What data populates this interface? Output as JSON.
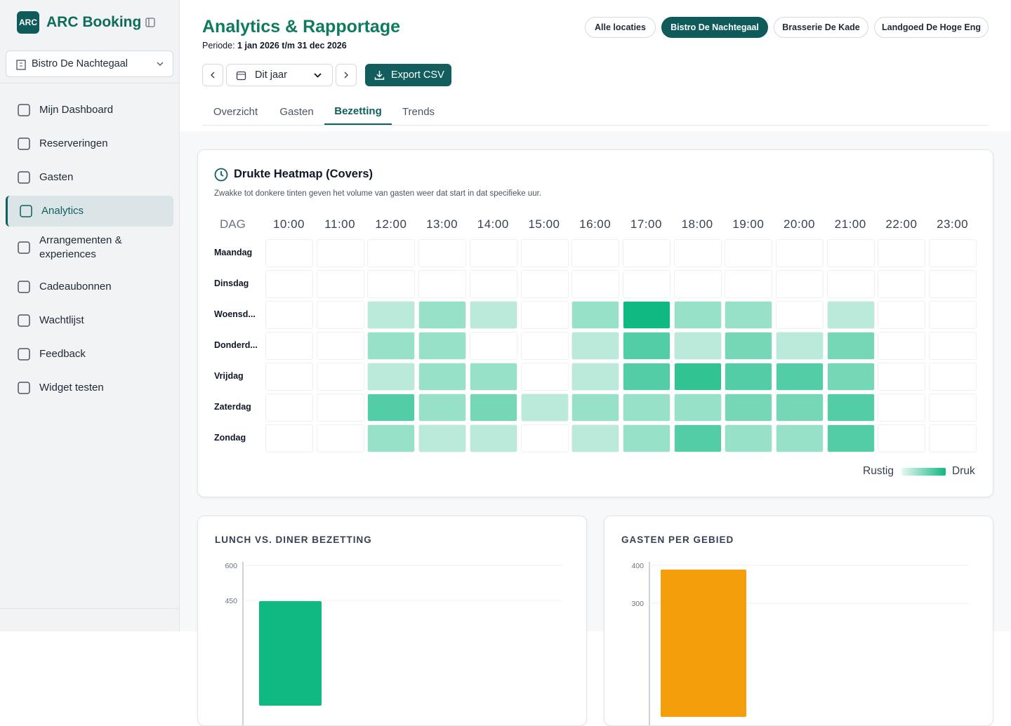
{
  "sidebar": {
    "brand": "ARC Booking",
    "logo": "ARC",
    "location": "Bistro De Nachtegaal",
    "menu": [
      "Mijn Dashboard",
      "Reserveringen",
      "Gasten",
      "Analytics",
      "Arrangementen & experiences",
      "Cadeaubonnen",
      "Wachtlijst",
      "Feedback",
      "Widget testen"
    ]
  },
  "header": {
    "title": "Analytics & Rapportage",
    "period_label": "Periode:",
    "period": "1 jan 2026 t/m 31 dec 2026",
    "locations": [
      "Alle locaties",
      "Bistro De Nachtegaal",
      "Brasserie De Kade",
      "Landgoed De Hoge Eng"
    ],
    "range": "Dit jaar",
    "export": "Export CSV",
    "tabs": [
      "Overzicht",
      "Gasten",
      "Bezetting",
      "Trends"
    ]
  },
  "heatmap": {
    "title": "Drukte Heatmap (Covers)",
    "subtitle": "Zwakke tot donkere tinten geven het volume van gasten weer dat start in dat specifieke uur.",
    "corner": "DAG",
    "hours": [
      "10:00",
      "11:00",
      "12:00",
      "13:00",
      "14:00",
      "15:00",
      "16:00",
      "17:00",
      "18:00",
      "19:00",
      "20:00",
      "21:00",
      "22:00",
      "23:00"
    ],
    "days": [
      "Maandag",
      "Dinsdag",
      "Woensd...",
      "Donderd...",
      "Vrijdag",
      "Zaterdag",
      "Zondag"
    ],
    "values": [
      [
        0,
        0,
        0,
        0,
        0,
        0,
        0,
        0,
        0,
        0,
        0,
        0,
        0,
        0
      ],
      [
        0,
        0,
        0,
        0,
        0,
        0,
        0,
        0,
        0,
        0,
        0,
        0,
        0,
        0
      ],
      [
        0,
        0,
        1,
        2,
        1,
        0,
        2,
        6,
        2,
        2,
        0,
        1,
        0,
        0
      ],
      [
        0,
        0,
        2,
        2,
        0,
        0,
        1,
        4,
        1,
        3,
        1,
        3,
        0,
        0
      ],
      [
        0,
        0,
        1,
        2,
        2,
        0,
        1,
        4,
        5,
        4,
        4,
        3,
        0,
        0
      ],
      [
        0,
        0,
        4,
        2,
        3,
        1,
        2,
        2,
        2,
        3,
        3,
        4,
        0,
        0
      ],
      [
        0,
        0,
        2,
        1,
        1,
        0,
        1,
        2,
        4,
        2,
        2,
        4,
        0,
        0
      ]
    ],
    "color": "#10b981",
    "legend_low": "Rustig",
    "legend_high": "Druk"
  },
  "charts": [
    {
      "type": "bar",
      "title": "LUNCH VS. DINER BEZETTING",
      "ylim": [
        0,
        600
      ],
      "yticks": [
        450,
        600
      ],
      "values": [
        447
      ],
      "color": "#10b981"
    },
    {
      "type": "bar",
      "title": "GASTEN PER GEBIED",
      "ylim": [
        0,
        400
      ],
      "yticks": [
        300,
        400
      ],
      "values": [
        389
      ],
      "color": "#f59e0b"
    }
  ]
}
